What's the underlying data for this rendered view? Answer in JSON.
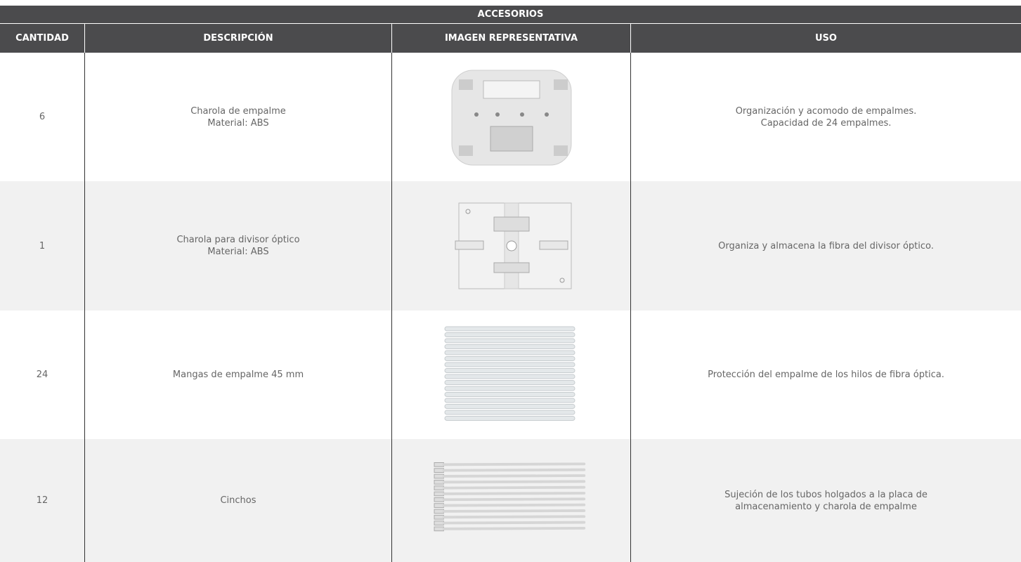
{
  "table": {
    "title": "ACCESORIOS",
    "headers": [
      "CANTIDAD",
      "DESCRIPCIÓN",
      "IMAGEN REPRESENTATIVA",
      "USO"
    ],
    "rows": [
      {
        "cantidad": "6",
        "descripcion": [
          "Charola de empalme",
          "Material: ABS"
        ],
        "uso": [
          "Organización y acomodo de empalmes.",
          "Capacidad de 24 empalmes."
        ]
      },
      {
        "cantidad": "1",
        "descripcion": [
          "Charola para divisor óptico",
          "Material: ABS"
        ],
        "uso": [
          "Organiza y almacena la fibra del divisor óptico."
        ]
      },
      {
        "cantidad": "24",
        "descripcion": [
          "Mangas de empalme 45 mm"
        ],
        "uso": [
          "Protección del empalme de los hilos de fibra óptica."
        ]
      },
      {
        "cantidad": "12",
        "descripcion": [
          "Cinchos"
        ],
        "uso": [
          "Sujeción de los tubos holgados a la placa de",
          "almacenamiento y charola de empalme"
        ]
      }
    ]
  }
}
